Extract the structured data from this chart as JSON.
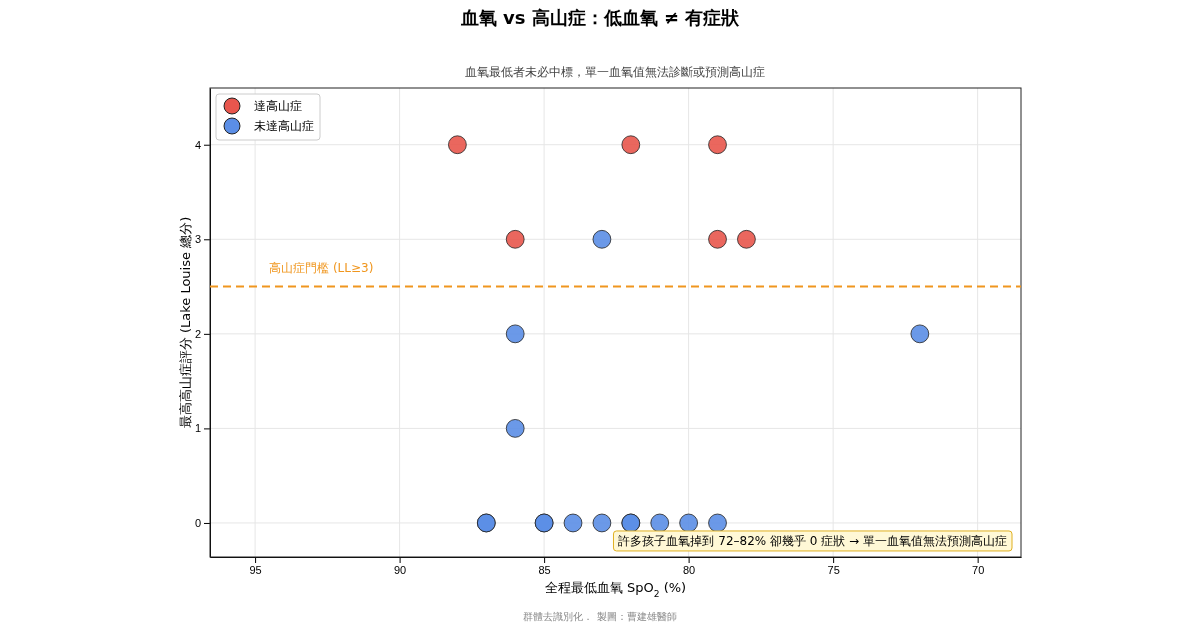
{
  "chart_data": {
    "type": "scatter",
    "title": "血氧 vs 高山症：低血氧 ≠ 有症狀",
    "subtitle": "血氧最低者未必中標，單一血氧值無法診斷或預測高山症",
    "xlabel": "全程最低血氧 SpO$_{2}$ (%)",
    "ylabel": "最高高山症評分 (Lake Louise 總分)",
    "series": [
      {
        "name": "達高山症",
        "color": "#e8564d",
        "x": [
          88,
          82,
          79,
          86,
          79,
          78
        ],
        "values": [
          4,
          4,
          4,
          3,
          3,
          3
        ]
      },
      {
        "name": "未達高山症",
        "color": "#5b8ee6",
        "x": [
          83,
          86,
          72,
          86,
          87,
          87,
          85,
          85,
          84,
          83,
          82,
          82,
          81,
          80,
          79
        ],
        "values": [
          3,
          2,
          2,
          1,
          0,
          0,
          0,
          0,
          0,
          0,
          0,
          0,
          0,
          0,
          0
        ]
      }
    ],
    "xlim": [
      96.56,
      68.5
    ],
    "xticks": [
      95,
      90,
      85,
      80,
      75,
      70
    ],
    "ylim": [
      -0.36,
      4.6
    ],
    "yticks": [
      0,
      1,
      2,
      3,
      4
    ],
    "ref_lines": [
      {
        "axis": "y",
        "value": 2.5,
        "label": "高山症門檻 (LL≥3)",
        "color": "#f0961e",
        "line_style": "dashed"
      }
    ],
    "annotations": [
      "許多孩子血氧掉到 72–82% 卻幾乎 0 症狀 → 單一血氧值無法預測高山症",
      "群體去識別化．  製圖：曹建雄醫師"
    ],
    "grid": true,
    "legend": "top left",
    "marker": "circle"
  }
}
